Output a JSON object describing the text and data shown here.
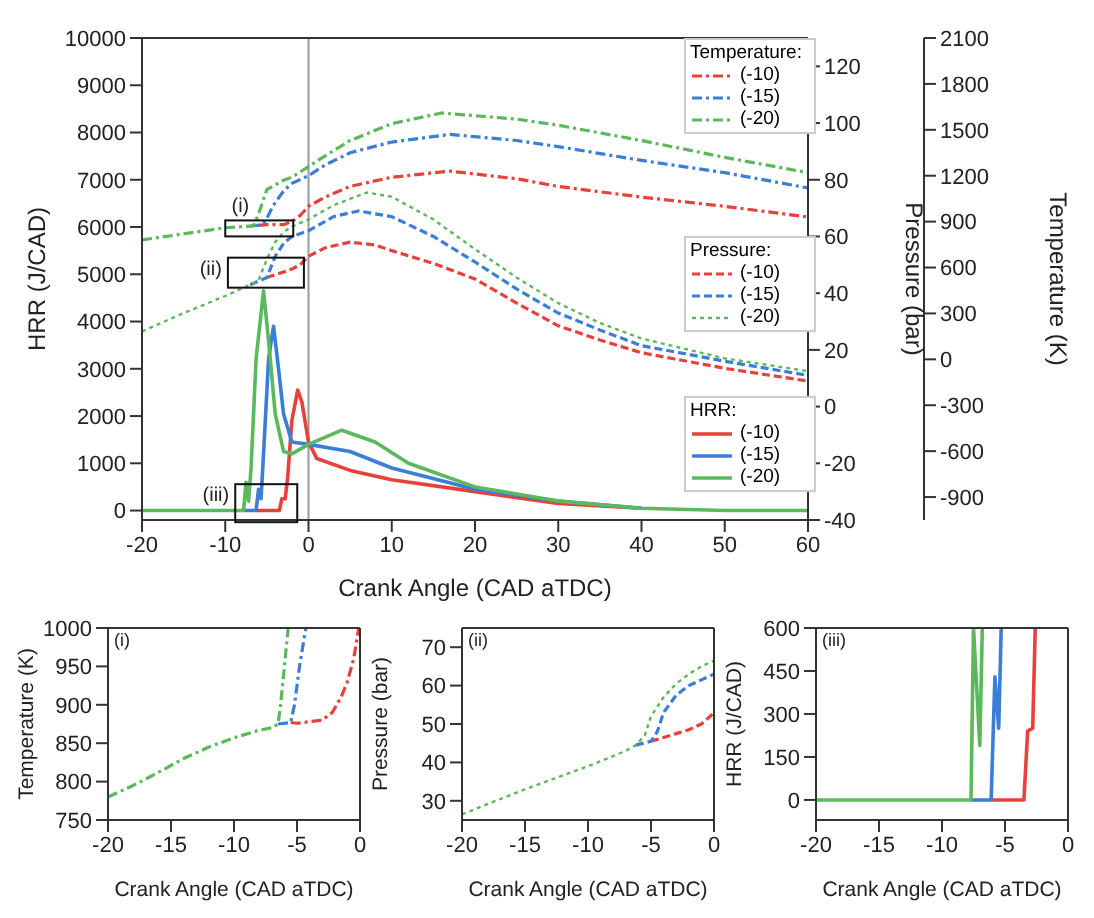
{
  "chart_data": [
    {
      "type": "line",
      "xlabel": "Crank Angle (CAD aTDC)",
      "ylabel": "HRR (J/CAD)",
      "y2label": "Pressure (bar)",
      "y3label": "Temperature (K)",
      "legend": "right",
      "xlim": [
        -20,
        60
      ],
      "xticks": [
        -20,
        -10,
        0,
        10,
        20,
        30,
        40,
        50,
        60
      ],
      "ylim": [
        -200,
        10000
      ],
      "yticks": [
        0,
        1000,
        2000,
        3000,
        4000,
        5000,
        6000,
        7000,
        8000,
        9000,
        10000
      ],
      "y2lim": [
        -40,
        130
      ],
      "y2ticks": [
        -40,
        -20,
        0,
        20,
        40,
        60,
        80,
        100,
        120
      ],
      "y3lim": [
        -1050,
        2100
      ],
      "y3ticks": [
        -900,
        -600,
        -300,
        0,
        300,
        600,
        900,
        1200,
        1500,
        1800,
        2100
      ],
      "ref_lines": [
        {
          "axis": "x",
          "value": 0,
          "color": "#999999"
        }
      ],
      "annotations": [
        "Temperature:",
        "Pressure:",
        "HRR:",
        "(i)",
        "(ii)",
        "(iii)"
      ],
      "series": [
        {
          "name": "(-10)",
          "color": "#e8403a",
          "axis": "y3",
          "line_style": "dashdot",
          "x": [
            -6,
            -5,
            -3,
            -2,
            -1,
            0,
            2,
            5,
            10,
            17,
            25,
            30,
            40,
            50,
            60
          ],
          "values": [
            875,
            880,
            880,
            900,
            940,
            1000,
            1060,
            1130,
            1190,
            1230,
            1180,
            1130,
            1060,
            1000,
            930
          ]
        },
        {
          "name": "(-15)",
          "color": "#3a7fd5",
          "axis": "y3",
          "line_style": "dashdot",
          "x": [
            -7,
            -5.5,
            -5,
            -4.3,
            -3,
            -2,
            0,
            2,
            5,
            10,
            17,
            25,
            30,
            40,
            50,
            60
          ],
          "values": [
            870,
            880,
            920,
            1000,
            1100,
            1150,
            1200,
            1270,
            1350,
            1420,
            1470,
            1430,
            1390,
            1300,
            1220,
            1120
          ]
        },
        {
          "name": "(-20)",
          "color": "#5cb85c",
          "axis": "y3",
          "line_style": "dashdot",
          "x": [
            -20,
            -15,
            -10,
            -7,
            -6.5,
            -6,
            -5,
            -3,
            -2,
            0,
            2,
            5,
            10,
            16,
            25,
            30,
            40,
            50,
            60
          ],
          "values": [
            780,
            820,
            860,
            870,
            880,
            950,
            1110,
            1170,
            1190,
            1260,
            1330,
            1430,
            1540,
            1610,
            1570,
            1530,
            1430,
            1320,
            1220
          ]
        },
        {
          "name": "(-10)",
          "color": "#e8403a",
          "axis": "y2",
          "line_style": "dashed",
          "x": [
            -5,
            -3,
            -2,
            -1,
            0,
            2,
            5,
            8,
            10,
            15,
            20,
            25,
            30,
            35,
            40,
            50,
            60
          ],
          "values": [
            45.5,
            47.5,
            48.5,
            50,
            53,
            56,
            58,
            57,
            55,
            50.5,
            45,
            36.5,
            28.5,
            23.5,
            19,
            13.5,
            9
          ]
        },
        {
          "name": "(-15)",
          "color": "#3a7fd5",
          "axis": "y2",
          "line_style": "dashed",
          "x": [
            -7,
            -5,
            -4,
            -3,
            -2,
            0,
            3,
            6,
            10,
            15,
            20,
            25,
            30,
            35,
            40,
            50,
            60
          ],
          "values": [
            43,
            45.5,
            53,
            57.5,
            60,
            62,
            67,
            69,
            67,
            60,
            51,
            41.5,
            33,
            27,
            21.5,
            16,
            11
          ]
        },
        {
          "name": "(-20)",
          "color": "#5cb85c",
          "axis": "y2",
          "line_style": "dotted",
          "x": [
            -20,
            -15,
            -10,
            -7,
            -6,
            -5,
            -4,
            -3,
            -2,
            0,
            3,
            7,
            10,
            15,
            20,
            25,
            30,
            35,
            40,
            50,
            60
          ],
          "values": [
            26.5,
            33,
            39,
            43,
            44.5,
            52,
            58,
            61.5,
            63.5,
            66,
            71,
            75.5,
            74,
            66,
            55.5,
            45.5,
            36.5,
            29.5,
            24,
            17,
            12.5
          ]
        },
        {
          "name": "(-10)",
          "color": "#e8403a",
          "line_style": "solid",
          "x": [
            -6.3,
            -3.5,
            -3.2,
            -2.8,
            -2.5,
            -2,
            -1.3,
            -0.8,
            0,
            1,
            5,
            10,
            20,
            30,
            40
          ],
          "values": [
            0,
            0,
            250,
            250,
            700,
            1900,
            2550,
            2300,
            1450,
            1100,
            850,
            650,
            400,
            150,
            50
          ]
        },
        {
          "name": "(-15)",
          "color": "#3a7fd5",
          "line_style": "solid",
          "x": [
            -7.8,
            -6.3,
            -6,
            -5.7,
            -5.4,
            -4.8,
            -4.2,
            -3.6,
            -3,
            -2,
            0,
            5,
            10,
            20,
            30,
            40
          ],
          "values": [
            0,
            0,
            450,
            250,
            1200,
            3200,
            3900,
            3000,
            2050,
            1450,
            1400,
            1250,
            900,
            450,
            200,
            50
          ]
        },
        {
          "name": "(-20)",
          "color": "#5cb85c",
          "line_style": "solid",
          "x": [
            -20,
            -7.8,
            -7.5,
            -7.2,
            -6.9,
            -6.3,
            -5.4,
            -4.8,
            -4,
            -3,
            -2,
            0,
            4,
            8,
            12,
            20,
            30,
            40,
            50,
            60
          ],
          "values": [
            0,
            0,
            600,
            200,
            900,
            3200,
            4650,
            3600,
            2050,
            1250,
            1200,
            1400,
            1700,
            1450,
            1000,
            500,
            200,
            50,
            0,
            0
          ]
        }
      ]
    },
    {
      "type": "line",
      "xlabel": "Crank Angle (CAD aTDC)",
      "ylabel": "Temperature (K)",
      "annotations": [
        "(i)"
      ],
      "xlim": [
        -20,
        0
      ],
      "xticks": [
        -20,
        -15,
        -10,
        -5,
        0
      ],
      "ylim": [
        750,
        1000
      ],
      "yticks": [
        750,
        800,
        850,
        900,
        950,
        1000
      ],
      "series": [
        {
          "color": "#e8403a",
          "line_style": "dashdot",
          "x": [
            -5.5,
            -5,
            -3,
            -2.2,
            -1.5,
            -1,
            -0.5,
            -0.1
          ],
          "values": [
            877,
            876,
            880,
            890,
            910,
            930,
            960,
            1000
          ]
        },
        {
          "color": "#3a7fd5",
          "line_style": "dashdot",
          "x": [
            -6.5,
            -5.5,
            -5.2,
            -4.8,
            -4.3
          ],
          "values": [
            875,
            877,
            900,
            950,
            1000
          ]
        },
        {
          "color": "#5cb85c",
          "line_style": "dashdot",
          "x": [
            -20,
            -18,
            -16,
            -14,
            -12,
            -10,
            -8,
            -7,
            -6.5,
            -6.3,
            -6,
            -5.7
          ],
          "values": [
            780,
            795,
            812,
            830,
            845,
            857,
            867,
            870,
            875,
            900,
            950,
            1000
          ]
        }
      ]
    },
    {
      "type": "line",
      "xlabel": "Crank Angle (CAD aTDC)",
      "ylabel": "Pressure (bar)",
      "annotations": [
        "(ii)"
      ],
      "xlim": [
        -20,
        0
      ],
      "xticks": [
        -20,
        -15,
        -10,
        -5,
        0
      ],
      "ylim": [
        25,
        75
      ],
      "yticks": [
        30,
        40,
        50,
        60,
        70
      ],
      "series": [
        {
          "color": "#e8403a",
          "line_style": "dashed",
          "x": [
            -5,
            -4,
            -3,
            -2,
            -1,
            -0.3,
            0
          ],
          "values": [
            45.5,
            46.5,
            47.5,
            48.5,
            50,
            52,
            53
          ]
        },
        {
          "color": "#3a7fd5",
          "line_style": "dashed",
          "x": [
            -6.2,
            -5,
            -4.5,
            -4,
            -3,
            -2,
            -1,
            0
          ],
          "values": [
            44.5,
            45.5,
            48,
            53,
            57.5,
            60,
            61.5,
            63
          ]
        },
        {
          "color": "#5cb85c",
          "line_style": "dotted",
          "x": [
            -20,
            -15,
            -10,
            -7,
            -6.2,
            -5.5,
            -5,
            -4,
            -3,
            -2,
            -1,
            0
          ],
          "values": [
            26.5,
            33,
            39,
            43,
            44.5,
            47,
            52,
            57,
            60.5,
            63,
            65,
            66.5
          ]
        }
      ]
    },
    {
      "type": "line",
      "xlabel": "Crank Angle (CAD aTDC)",
      "ylabel": "HRR (J/CAD)",
      "annotations": [
        "(iii)"
      ],
      "xlim": [
        -20,
        0
      ],
      "xticks": [
        -20,
        -15,
        -10,
        -5,
        0
      ],
      "ylim": [
        -70,
        600
      ],
      "yticks": [
        0,
        150,
        300,
        450,
        600
      ],
      "series": [
        {
          "color": "#e8403a",
          "line_style": "solid",
          "x": [
            -6.1,
            -3.5,
            -3.2,
            -2.8,
            -2.6
          ],
          "values": [
            0,
            0,
            240,
            250,
            600
          ]
        },
        {
          "color": "#3a7fd5",
          "line_style": "solid",
          "x": [
            -7.7,
            -6.1,
            -5.8,
            -5.5,
            -5.3
          ],
          "values": [
            0,
            0,
            430,
            250,
            600
          ]
        },
        {
          "color": "#5cb85c",
          "line_style": "solid",
          "x": [
            -20,
            -7.7,
            -7.5,
            -7.0,
            -6.8
          ],
          "values": [
            0,
            0,
            600,
            190,
            600
          ]
        }
      ]
    }
  ]
}
